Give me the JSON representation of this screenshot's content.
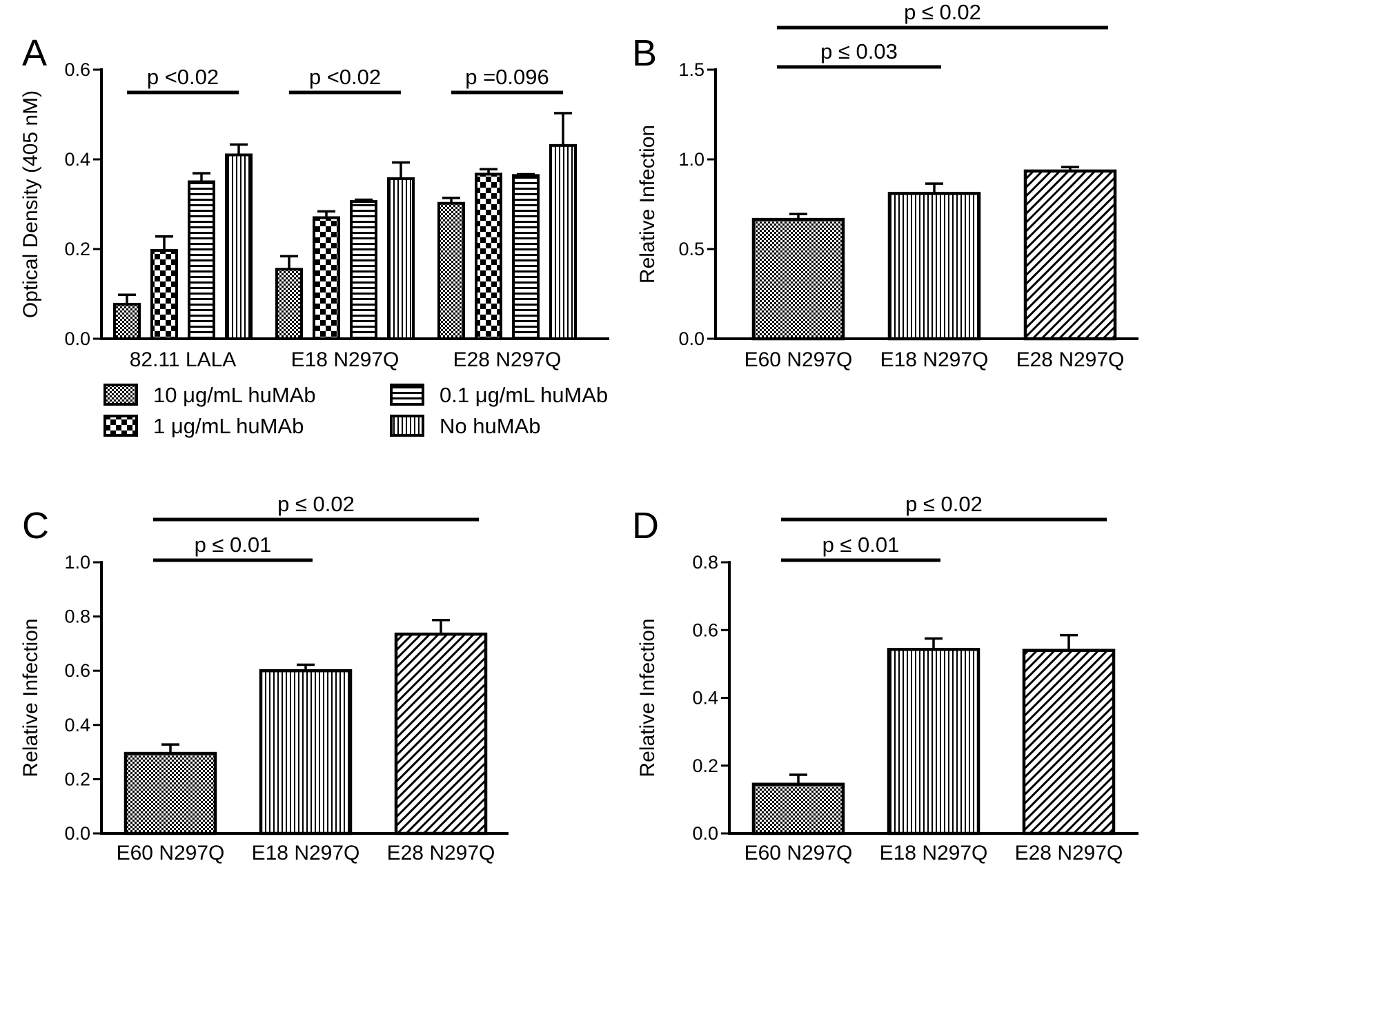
{
  "colors": {
    "ink": "#000000",
    "paper": "#ffffff"
  },
  "legend": [
    {
      "label": "10 μg/mL huMAb",
      "pattern": "fine-check"
    },
    {
      "label": "1 μg/mL huMAb",
      "pattern": "coarse-check"
    },
    {
      "label": "0.1 μg/mL huMAb",
      "pattern": "horizontal"
    },
    {
      "label": "No huMAb",
      "pattern": "vertical"
    }
  ],
  "chart_data": [
    {
      "panel": "A",
      "type": "bar",
      "ylabel": "Optical Density (405 nM)",
      "ylim": [
        0,
        0.6
      ],
      "yticks": [
        "0.0",
        "0.2",
        "0.4",
        "0.6"
      ],
      "categories": [
        "82.11 LALA",
        "E18 N297Q",
        "E28 N297Q"
      ],
      "series": [
        {
          "name": "10 μg/mL huMAb",
          "pattern": "fine-check",
          "values": [
            0.077,
            0.155,
            0.302
          ],
          "errors": [
            0.021,
            0.029,
            0.012
          ]
        },
        {
          "name": "1 μg/mL huMAb",
          "pattern": "coarse-check",
          "values": [
            0.197,
            0.27,
            0.367
          ],
          "errors": [
            0.031,
            0.014,
            0.011
          ]
        },
        {
          "name": "0.1 μg/mL huMAb",
          "pattern": "horizontal",
          "values": [
            0.35,
            0.306,
            0.364
          ],
          "errors": [
            0.019,
            0.004,
            0.003
          ]
        },
        {
          "name": "No huMAb",
          "pattern": "vertical",
          "values": [
            0.41,
            0.357,
            0.431
          ],
          "errors": [
            0.023,
            0.036,
            0.072
          ]
        }
      ],
      "significance": [
        {
          "label": "p <0.02",
          "group": 0
        },
        {
          "label": "p <0.02",
          "group": 1
        },
        {
          "label": "p =0.096",
          "group": 2
        }
      ]
    },
    {
      "panel": "B",
      "type": "bar",
      "ylabel": "Relative Infection",
      "ylim": [
        0,
        1.5
      ],
      "yticks": [
        "0.0",
        "0.5",
        "1.0",
        "1.5"
      ],
      "categories": [
        "E60 N297Q",
        "E18 N297Q",
        "E28 N297Q"
      ],
      "patterns": [
        "fine-check",
        "vertical",
        "diagonal"
      ],
      "values": [
        0.665,
        0.81,
        0.935
      ],
      "errors": [
        0.03,
        0.055,
        0.022
      ],
      "significance": [
        {
          "label": "p ≤ 0.03",
          "from": 0,
          "to": 1
        },
        {
          "label": "p ≤ 0.02",
          "from": 0,
          "to": 2
        }
      ]
    },
    {
      "panel": "C",
      "type": "bar",
      "ylabel": "Relative Infection",
      "ylim": [
        0,
        1.0
      ],
      "yticks": [
        "0.0",
        "0.2",
        "0.4",
        "0.6",
        "0.8",
        "1.0"
      ],
      "categories": [
        "E60 N297Q",
        "E18 N297Q",
        "E28 N297Q"
      ],
      "patterns": [
        "fine-check",
        "vertical",
        "diagonal"
      ],
      "values": [
        0.295,
        0.6,
        0.735
      ],
      "errors": [
        0.033,
        0.022,
        0.052
      ],
      "significance": [
        {
          "label": "p ≤ 0.01",
          "from": 0,
          "to": 1
        },
        {
          "label": "p ≤ 0.02",
          "from": 0,
          "to": 2
        }
      ]
    },
    {
      "panel": "D",
      "type": "bar",
      "ylabel": "Relative Infection",
      "ylim": [
        0,
        0.8
      ],
      "yticks": [
        "0.0",
        "0.2",
        "0.4",
        "0.6",
        "0.8"
      ],
      "categories": [
        "E60 N297Q",
        "E18 N297Q",
        "E28 N297Q"
      ],
      "patterns": [
        "fine-check",
        "vertical",
        "diagonal"
      ],
      "values": [
        0.145,
        0.543,
        0.54
      ],
      "errors": [
        0.028,
        0.032,
        0.045
      ],
      "significance": [
        {
          "label": "p ≤ 0.01",
          "from": 0,
          "to": 1
        },
        {
          "label": "p ≤ 0.02",
          "from": 0,
          "to": 2
        }
      ]
    }
  ]
}
